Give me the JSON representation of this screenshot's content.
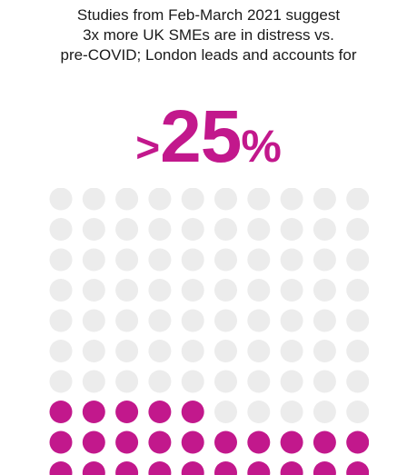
{
  "headline": {
    "lines": [
      "Studies from Feb-March 2021 suggest",
      "3x more UK SMEs are in distress vs.",
      "pre-COVID; London leads and accounts for"
    ]
  },
  "big_stat": {
    "prefix": ">",
    "number": "25",
    "suffix": "%"
  },
  "colors": {
    "accent": "#c2188c",
    "empty": "#ececec",
    "text": "#1a1a1a"
  },
  "chart_data": {
    "type": "waffle",
    "rows": 10,
    "columns": 10,
    "total": 100,
    "filled": 25,
    "fill_order": "bottom-up, left-to-right"
  }
}
